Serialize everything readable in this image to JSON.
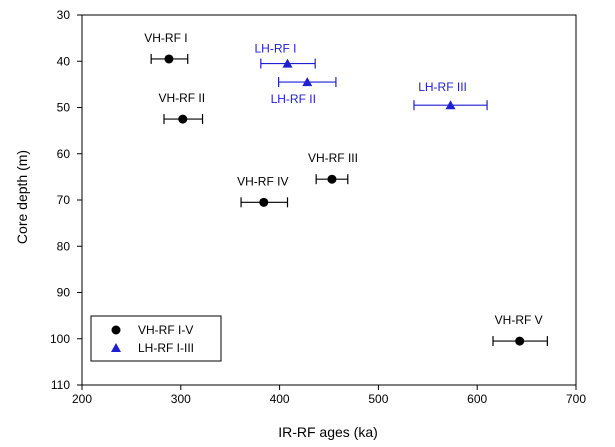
{
  "chart_data": {
    "type": "scatter",
    "xlabel": "IR-RF ages (ka)",
    "ylabel": "Core depth (m)",
    "xlim": [
      200,
      700
    ],
    "ylim": [
      30,
      110
    ],
    "y_inverted": true,
    "x_ticks": [
      "200",
      "300",
      "400",
      "500",
      "600",
      "700"
    ],
    "y_ticks": [
      "30",
      "40",
      "50",
      "60",
      "70",
      "80",
      "90",
      "100",
      "110"
    ],
    "grid": false,
    "legend_position": "bottom-left",
    "series": [
      {
        "name": "VH-RF I-V",
        "marker": "circle",
        "color": "#000000",
        "points": [
          {
            "label": "VH-RF I",
            "x": 288,
            "y": 39.5,
            "xerr_low": 270,
            "xerr_high": 307
          },
          {
            "label": "VH-RF II",
            "x": 302,
            "y": 52.5,
            "xerr_low": 283,
            "xerr_high": 322
          },
          {
            "label": "VH-RF III",
            "x": 453,
            "y": 65.5,
            "xerr_low": 437,
            "xerr_high": 469
          },
          {
            "label": "VH-RF IV",
            "x": 384,
            "y": 70.5,
            "xerr_low": 361,
            "xerr_high": 408
          },
          {
            "label": "VH-RF V",
            "x": 643,
            "y": 100.5,
            "xerr_low": 616,
            "xerr_high": 671
          }
        ]
      },
      {
        "name": "LH-RF I-III",
        "marker": "triangle",
        "color": "#1f1fd6",
        "points": [
          {
            "label": "LH-RF I",
            "x": 408,
            "y": 40.5,
            "xerr_low": 381,
            "xerr_high": 436
          },
          {
            "label": "LH-RF II",
            "x": 428,
            "y": 44.5,
            "xerr_low": 399,
            "xerr_high": 457
          },
          {
            "label": "LH-RF III",
            "x": 573,
            "y": 49.5,
            "xerr_low": 536,
            "xerr_high": 610
          }
        ]
      }
    ]
  }
}
